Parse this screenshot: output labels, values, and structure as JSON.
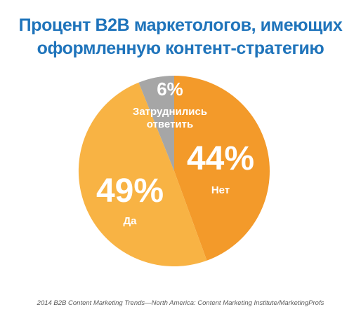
{
  "title": {
    "line1": "Процент B2B маркетологов, имеющих",
    "line2": "оформленную контент-стратегию"
  },
  "chart_data": {
    "type": "pie",
    "slices": [
      {
        "label": "Нет",
        "value": 44,
        "value_text": "44%",
        "color": "#f39a2a"
      },
      {
        "label": "Да",
        "value": 49,
        "value_text": "49%",
        "color": "#f8b344"
      },
      {
        "label": "Затруднились ответить",
        "label_lines": [
          "Затруднились",
          "ответить"
        ],
        "value": 6,
        "value_text": "6%",
        "color": "#a6a6a6"
      }
    ]
  },
  "source": "2014 B2B Content Marketing Trends—North America: Content Marketing Institute/MarketingProfs"
}
